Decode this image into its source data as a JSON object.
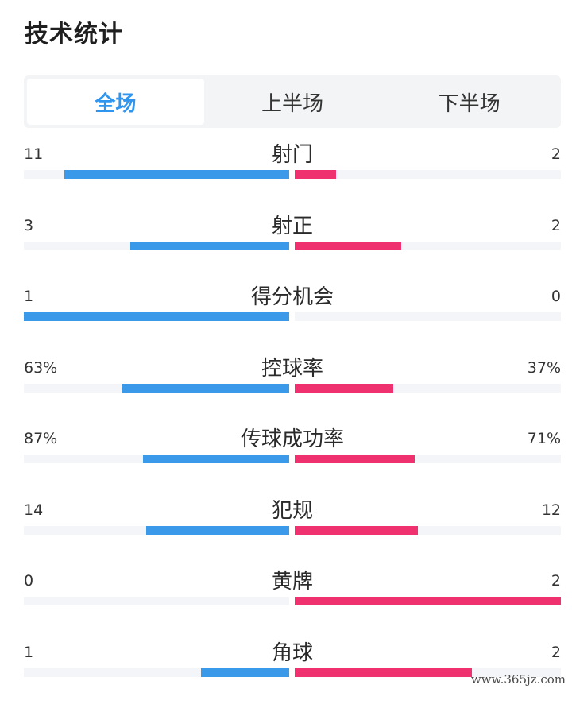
{
  "title": "技术统计",
  "tabs": [
    {
      "label": "全场",
      "active": true
    },
    {
      "label": "上半场",
      "active": false
    },
    {
      "label": "下半场",
      "active": false
    }
  ],
  "colors": {
    "home": "#3b99ea",
    "away": "#ef316f",
    "active_tab": "#2f95ef"
  },
  "stats": [
    {
      "label": "射门",
      "home": "11",
      "away": "2",
      "home_share": 0.846,
      "away_share": 0.154
    },
    {
      "label": "射正",
      "home": "3",
      "away": "2",
      "home_share": 0.6,
      "away_share": 0.4
    },
    {
      "label": "得分机会",
      "home": "1",
      "away": "0",
      "home_share": 1.0,
      "away_share": 0.0
    },
    {
      "label": "控球率",
      "home": "63%",
      "away": "37%",
      "home_share": 0.63,
      "away_share": 0.37
    },
    {
      "label": "传球成功率",
      "home": "87%",
      "away": "71%",
      "home_share": 0.55,
      "away_share": 0.45
    },
    {
      "label": "犯规",
      "home": "14",
      "away": "12",
      "home_share": 0.538,
      "away_share": 0.462
    },
    {
      "label": "黄牌",
      "home": "0",
      "away": "2",
      "home_share": 0.0,
      "away_share": 1.0
    },
    {
      "label": "角球",
      "home": "1",
      "away": "2",
      "home_share": 0.333,
      "away_share": 0.667
    }
  ],
  "watermark": "www.365jz.com"
}
